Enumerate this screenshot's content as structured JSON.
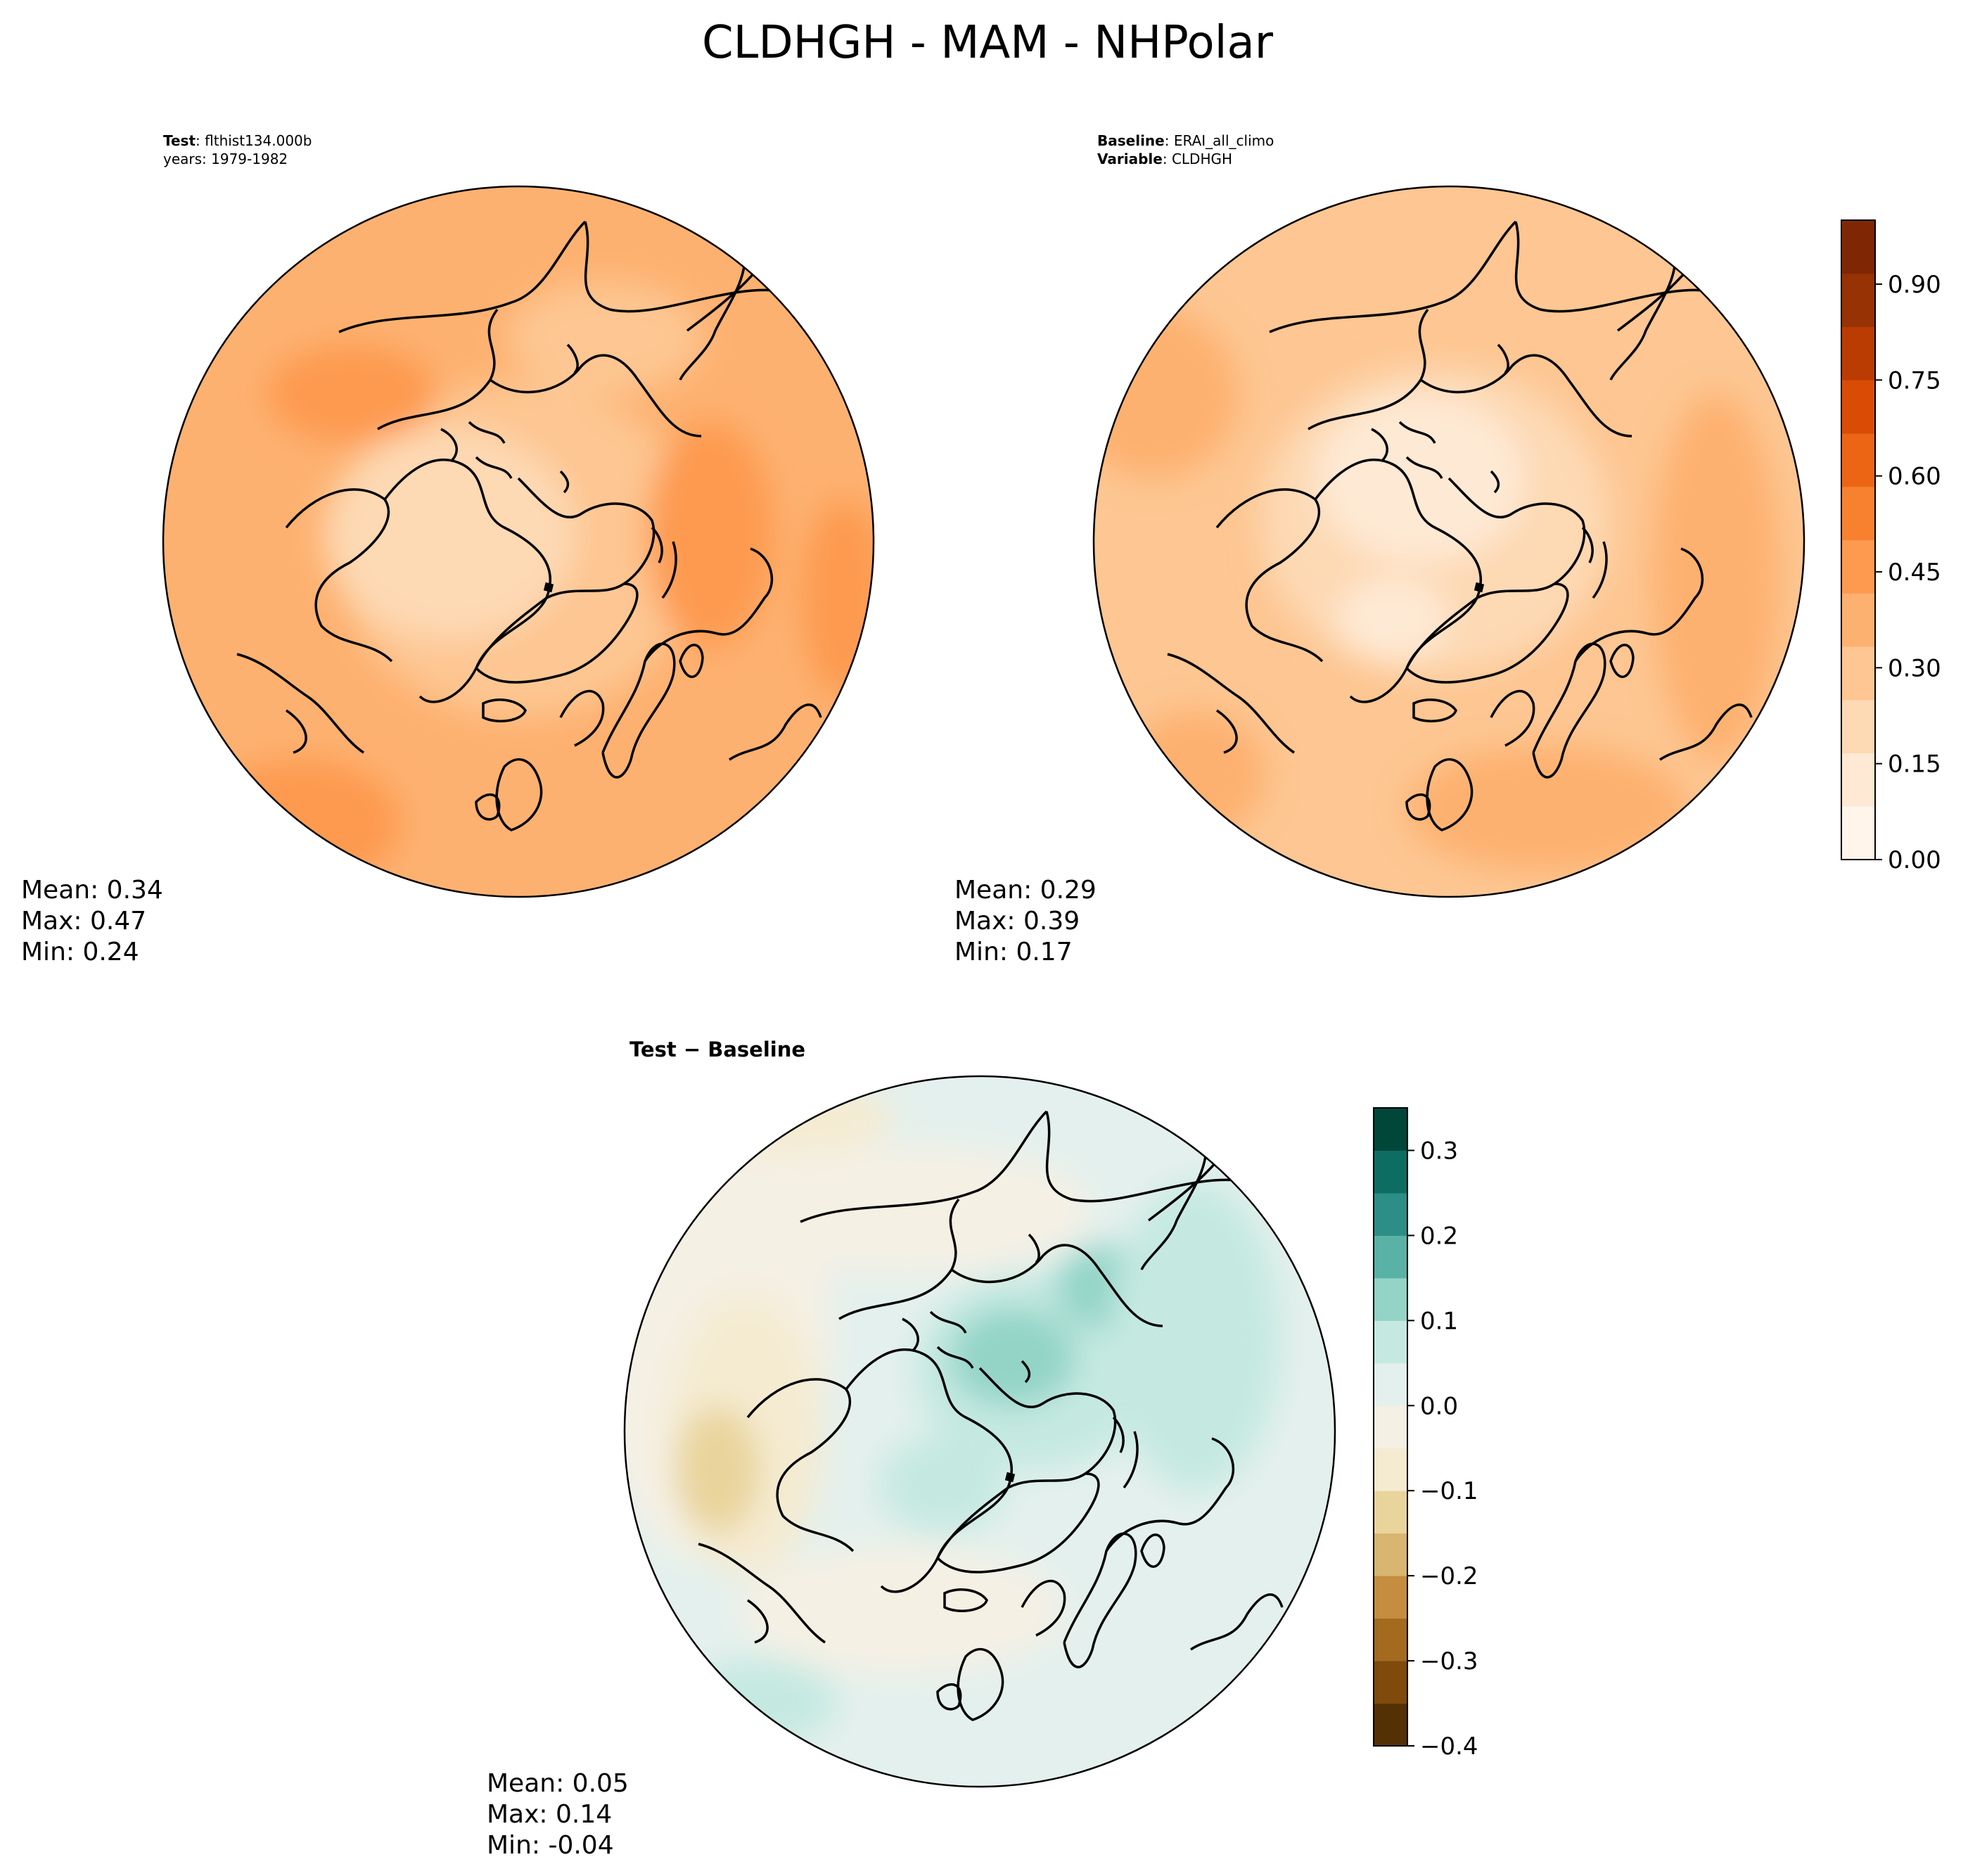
{
  "figure": {
    "title": "CLDHGH - MAM - NHPolar"
  },
  "colors": {
    "oranges": [
      "#fff5eb",
      "#fee9d4",
      "#fdd9b4",
      "#fdc692",
      "#fdb170",
      "#fd9a50",
      "#f7812f",
      "#ec6515",
      "#da4c05",
      "#ba3c03",
      "#963203",
      "#7f2704"
    ],
    "diverging_brbg_negative": [
      "#543005",
      "#7f4a0b",
      "#a36a20",
      "#c58d3f",
      "#d8b570",
      "#e9d49b",
      "#f5ebd1",
      "#f5f0e4"
    ],
    "diverging_brbg_positive": [
      "#e4f0ed",
      "#c5e9e1",
      "#93d4c7",
      "#5ab2a7",
      "#2c8e86",
      "#0d6d62",
      "#00473a"
    ],
    "coastline": "#000000"
  },
  "chart_data": [
    {
      "type": "heatmap",
      "projection": "north-polar-stereographic",
      "panel": "test",
      "label_bold": "Test",
      "label_value": "flthist134.000b",
      "sublabel": "years: 1979-1982",
      "stats": {
        "mean": "Mean:  0.34",
        "max": "Max:  0.47",
        "min": "Min:  0.24"
      },
      "field_range": [
        0.24,
        0.47
      ]
    },
    {
      "type": "heatmap",
      "projection": "north-polar-stereographic",
      "panel": "baseline",
      "label_bold": "Baseline",
      "label_value": "ERAI_all_climo",
      "sublabel_bold": "Variable",
      "sublabel_value": "CLDHGH",
      "stats": {
        "mean": "Mean:  0.29",
        "max": "Max:  0.39",
        "min": "Min:  0.17"
      },
      "field_range": [
        0.17,
        0.39
      ],
      "colorbar": {
        "range": [
          0.0,
          1.0
        ],
        "ticks": [
          0.0,
          0.15,
          0.3,
          0.45,
          0.6,
          0.75,
          0.9
        ],
        "tick_labels": [
          "0.00",
          "0.15",
          "0.30",
          "0.45",
          "0.60",
          "0.75",
          "0.90"
        ]
      }
    },
    {
      "type": "heatmap",
      "projection": "north-polar-stereographic",
      "panel": "difference",
      "label": "Test − Baseline",
      "stats": {
        "mean": "Mean:  0.05",
        "max": "Max:  0.14",
        "min": "Min: -0.04"
      },
      "field_range": [
        -0.04,
        0.14
      ],
      "colorbar": {
        "range": [
          -0.4,
          0.35
        ],
        "ticks": [
          -0.4,
          -0.3,
          -0.2,
          -0.1,
          0.0,
          0.1,
          0.2,
          0.3
        ],
        "tick_labels": [
          "−0.4",
          "−0.3",
          "−0.2",
          "−0.1",
          "0.0",
          "0.1",
          "0.2",
          "0.3"
        ]
      }
    }
  ]
}
